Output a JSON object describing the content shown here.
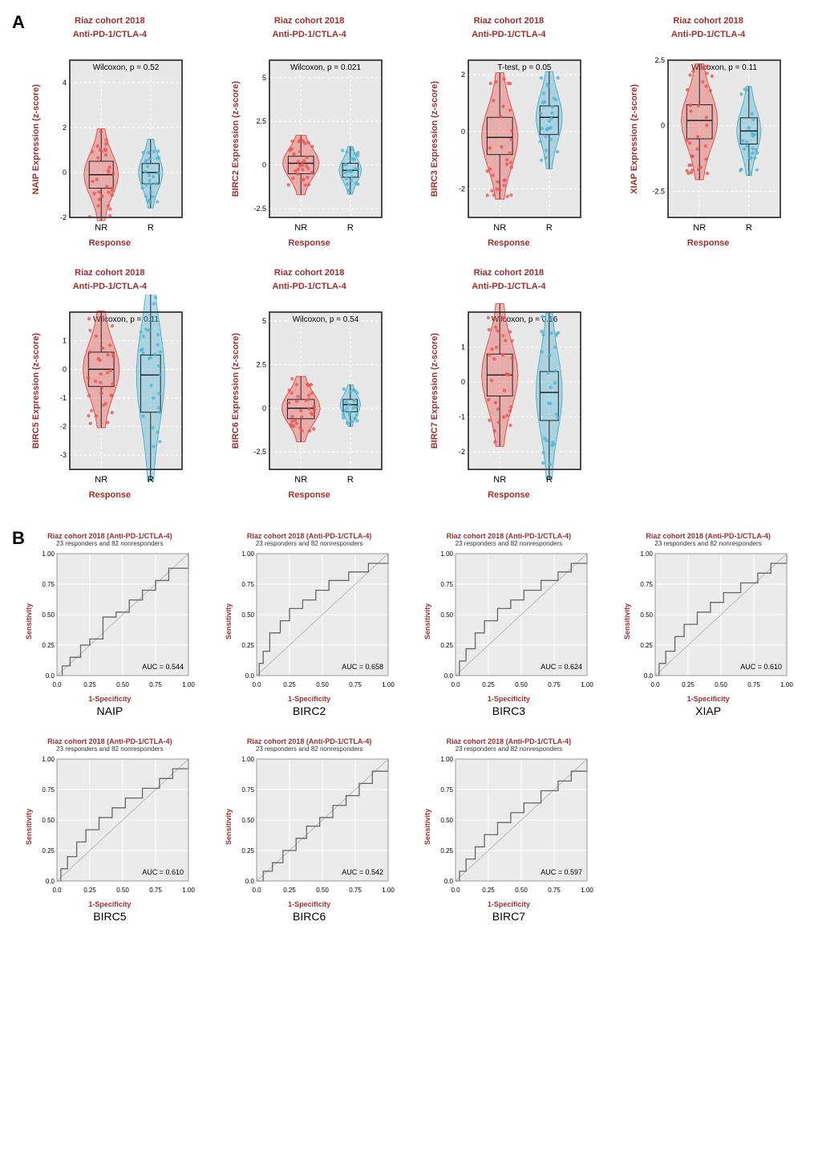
{
  "panelA": {
    "label": "A",
    "common_title_line1": "Riaz cohort 2018",
    "common_title_line2": "Anti-PD-1/CTLA-4",
    "xlabel": "Response",
    "xtick_NR": "NR",
    "xtick_R": "R",
    "nr_color": "#e8534f",
    "r_color": "#4fb3d1",
    "nr_fill": "rgba(232,83,79,0.4)",
    "r_fill": "rgba(79,179,209,0.4)",
    "plot_bg": "#e8e8e8",
    "grid_color": "#ffffff",
    "border_color": "#333333",
    "charts": [
      {
        "gene": "NAIP",
        "ylabel": "NAIP Expression (z-score)",
        "stat": "Wilcoxon, p = 0.52",
        "ymin": -2,
        "ymax": 5,
        "yticks": [
          -2,
          0,
          2,
          4
        ],
        "nr_box": [
          -0.7,
          -0.1,
          0.5
        ],
        "r_box": [
          -0.5,
          0.0,
          0.4
        ],
        "nr_width": 0.85,
        "r_width": 0.6
      },
      {
        "gene": "BIRC2",
        "ylabel": "BIRC2 Expression (z-score)",
        "stat": "Wilcoxon, p = 0.021",
        "ymin": -3,
        "ymax": 6,
        "yticks": [
          -2.5,
          0,
          2.5,
          5.0
        ],
        "nr_box": [
          -0.5,
          0.1,
          0.5
        ],
        "r_box": [
          -0.7,
          -0.3,
          0.1
        ],
        "nr_width": 0.9,
        "r_width": 0.55
      },
      {
        "gene": "BIRC3",
        "ylabel": "BIRC3 Expression (z-score)",
        "stat": "T-test, p = 0.05",
        "ymin": -3,
        "ymax": 2.5,
        "yticks": [
          -2,
          0,
          2
        ],
        "nr_box": [
          -0.8,
          -0.2,
          0.5
        ],
        "r_box": [
          -0.1,
          0.5,
          0.9
        ],
        "nr_width": 0.9,
        "r_width": 0.65
      },
      {
        "gene": "XIAP",
        "ylabel": "XIAP Expression (z-score)",
        "stat": "Wilcoxon, p = 0.11",
        "ymin": -3.5,
        "ymax": 2.5,
        "yticks": [
          -2.5,
          0,
          2.5
        ],
        "nr_box": [
          -0.5,
          0.2,
          0.8
        ],
        "r_box": [
          -0.7,
          -0.2,
          0.3
        ],
        "nr_width": 0.9,
        "r_width": 0.6
      },
      {
        "gene": "BIRC5",
        "ylabel": "BIRC5 Expression (z-score)",
        "stat": "Wilcoxon, p = 0.11",
        "ymin": -3.5,
        "ymax": 2,
        "yticks": [
          -3,
          -2,
          -1,
          0,
          1
        ],
        "nr_box": [
          -0.6,
          0.0,
          0.6
        ],
        "r_box": [
          -1.5,
          -0.2,
          0.5
        ],
        "nr_width": 0.9,
        "r_width": 0.7
      },
      {
        "gene": "BIRC6",
        "ylabel": "BIRC6 Expression (z-score)",
        "stat": "Wilcoxon, p = 0.54",
        "ymin": -3.5,
        "ymax": 5.5,
        "yticks": [
          -2.5,
          0,
          2.5,
          5.0
        ],
        "nr_box": [
          -0.6,
          0.0,
          0.5
        ],
        "r_box": [
          -0.2,
          0.2,
          0.5
        ],
        "nr_width": 0.95,
        "r_width": 0.5
      },
      {
        "gene": "BIRC7",
        "ylabel": "BIRC7 Expression (z-score)",
        "stat": "Wilcoxon, p = 0.16",
        "ymin": -2.5,
        "ymax": 2,
        "yticks": [
          -2,
          -1,
          0,
          1
        ],
        "nr_box": [
          -0.4,
          0.2,
          0.8
        ],
        "r_box": [
          -1.1,
          -0.3,
          0.3
        ],
        "nr_width": 0.9,
        "r_width": 0.65
      }
    ]
  },
  "panelB": {
    "label": "B",
    "common_title": "Riaz cohort 2018 (Anti-PD-1/CTLA-4)",
    "common_subtitle": "23 responders and 82 nonresponders",
    "ylabel": "Sensitivity",
    "xlabel": "1-Specificity",
    "plot_bg": "#ebebeb",
    "grid_color": "#ffffff",
    "line_color": "#666666",
    "diag_color": "#bbbbbb",
    "tick_vals": [
      0.0,
      0.25,
      0.5,
      0.75,
      1.0
    ],
    "tick_labels": [
      "0.0",
      "0.25",
      "0.50",
      "0.75",
      "1.00"
    ],
    "charts": [
      {
        "gene": "NAIP",
        "auc_label": "AUC = 0.544",
        "roc": [
          [
            0,
            0
          ],
          [
            0.04,
            0.08
          ],
          [
            0.1,
            0.15
          ],
          [
            0.18,
            0.25
          ],
          [
            0.25,
            0.3
          ],
          [
            0.35,
            0.48
          ],
          [
            0.45,
            0.52
          ],
          [
            0.55,
            0.62
          ],
          [
            0.65,
            0.7
          ],
          [
            0.75,
            0.78
          ],
          [
            0.85,
            0.88
          ],
          [
            1,
            1
          ]
        ]
      },
      {
        "gene": "BIRC2",
        "auc_label": "AUC = 0.658",
        "roc": [
          [
            0,
            0
          ],
          [
            0.02,
            0.1
          ],
          [
            0.05,
            0.2
          ],
          [
            0.1,
            0.35
          ],
          [
            0.18,
            0.45
          ],
          [
            0.25,
            0.55
          ],
          [
            0.35,
            0.62
          ],
          [
            0.45,
            0.7
          ],
          [
            0.55,
            0.78
          ],
          [
            0.7,
            0.85
          ],
          [
            0.85,
            0.92
          ],
          [
            1,
            1
          ]
        ]
      },
      {
        "gene": "BIRC3",
        "auc_label": "AUC = 0.624",
        "roc": [
          [
            0,
            0
          ],
          [
            0.03,
            0.12
          ],
          [
            0.08,
            0.22
          ],
          [
            0.15,
            0.35
          ],
          [
            0.22,
            0.45
          ],
          [
            0.32,
            0.55
          ],
          [
            0.42,
            0.62
          ],
          [
            0.52,
            0.7
          ],
          [
            0.65,
            0.78
          ],
          [
            0.78,
            0.85
          ],
          [
            0.88,
            0.92
          ],
          [
            1,
            1
          ]
        ]
      },
      {
        "gene": "XIAP",
        "auc_label": "AUC = 0.610",
        "roc": [
          [
            0,
            0
          ],
          [
            0.03,
            0.1
          ],
          [
            0.08,
            0.2
          ],
          [
            0.15,
            0.32
          ],
          [
            0.22,
            0.42
          ],
          [
            0.32,
            0.52
          ],
          [
            0.42,
            0.6
          ],
          [
            0.52,
            0.68
          ],
          [
            0.65,
            0.76
          ],
          [
            0.78,
            0.84
          ],
          [
            0.88,
            0.92
          ],
          [
            1,
            1
          ]
        ]
      },
      {
        "gene": "BIRC5",
        "auc_label": "AUC = 0.610",
        "roc": [
          [
            0,
            0
          ],
          [
            0.03,
            0.1
          ],
          [
            0.08,
            0.2
          ],
          [
            0.15,
            0.32
          ],
          [
            0.22,
            0.42
          ],
          [
            0.32,
            0.52
          ],
          [
            0.42,
            0.6
          ],
          [
            0.52,
            0.68
          ],
          [
            0.65,
            0.76
          ],
          [
            0.78,
            0.84
          ],
          [
            0.88,
            0.92
          ],
          [
            1,
            1
          ]
        ]
      },
      {
        "gene": "BIRC6",
        "auc_label": "AUC = 0.542",
        "roc": [
          [
            0,
            0
          ],
          [
            0.05,
            0.08
          ],
          [
            0.12,
            0.15
          ],
          [
            0.2,
            0.25
          ],
          [
            0.3,
            0.35
          ],
          [
            0.38,
            0.45
          ],
          [
            0.48,
            0.52
          ],
          [
            0.58,
            0.62
          ],
          [
            0.68,
            0.7
          ],
          [
            0.78,
            0.8
          ],
          [
            0.88,
            0.9
          ],
          [
            1,
            1
          ]
        ]
      },
      {
        "gene": "BIRC7",
        "auc_label": "AUC = 0.597",
        "roc": [
          [
            0,
            0
          ],
          [
            0.03,
            0.08
          ],
          [
            0.08,
            0.18
          ],
          [
            0.15,
            0.28
          ],
          [
            0.22,
            0.38
          ],
          [
            0.32,
            0.48
          ],
          [
            0.42,
            0.56
          ],
          [
            0.52,
            0.64
          ],
          [
            0.65,
            0.74
          ],
          [
            0.78,
            0.82
          ],
          [
            0.88,
            0.9
          ],
          [
            1,
            1
          ]
        ]
      }
    ]
  }
}
